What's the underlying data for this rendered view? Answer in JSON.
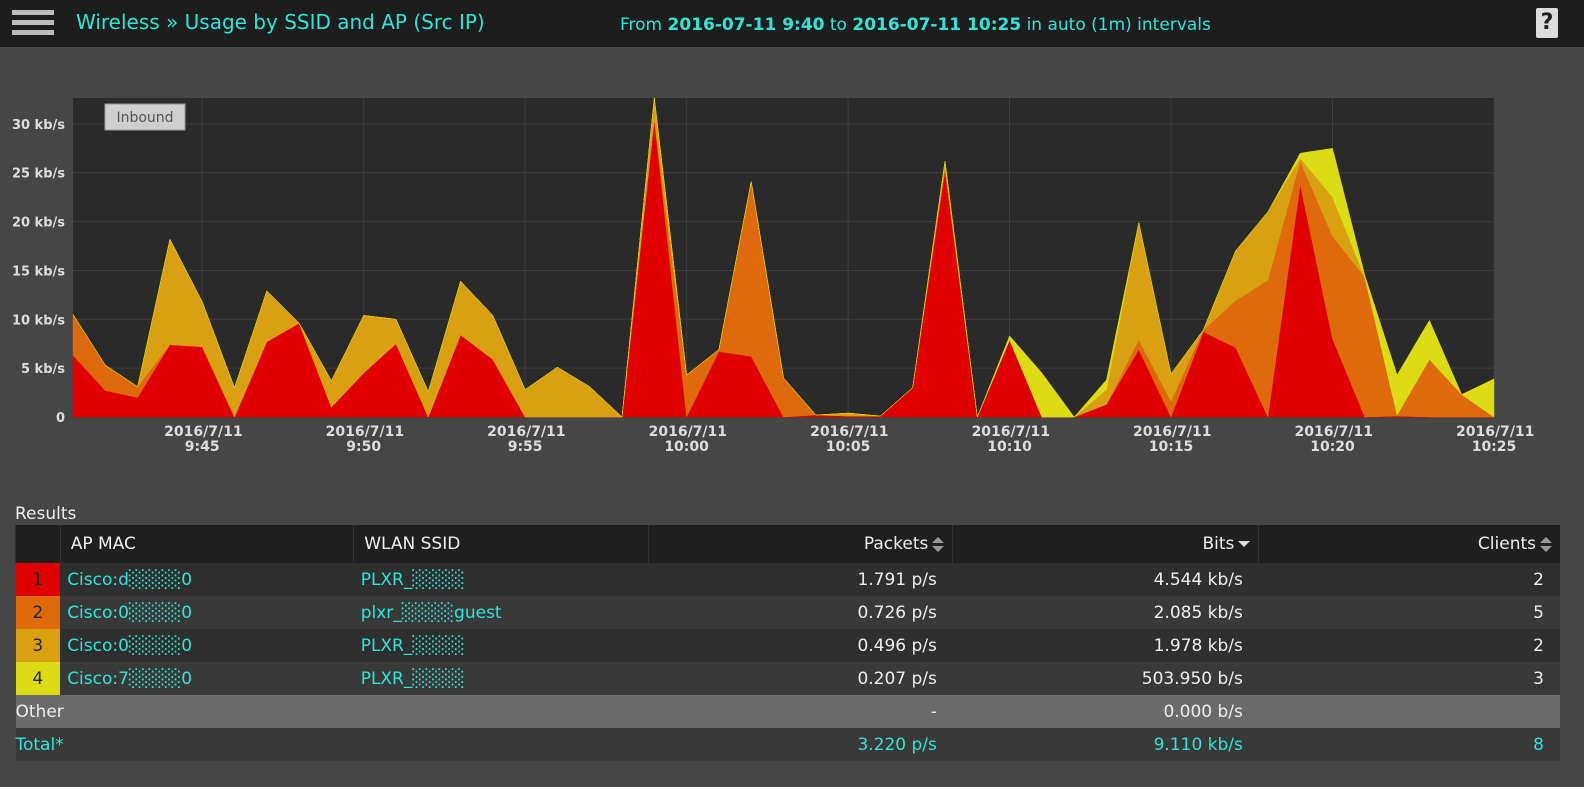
{
  "header": {
    "title": "Wireless » Usage by SSID and AP (Src IP)",
    "from_label": "From",
    "from": "2016-07-11 9:40",
    "to_label": "to",
    "to": "2016-07-11 10:25",
    "interval": "in auto (1m) intervals",
    "help": "?"
  },
  "chart_data": {
    "type": "area",
    "stacked": true,
    "toggle": "Inbound",
    "categories": [
      null,
      null,
      null,
      null,
      "2016/7/11 9:45",
      null,
      null,
      null,
      null,
      "2016/7/11 9:50",
      null,
      null,
      null,
      null,
      "2016/7/11 9:55",
      null,
      null,
      null,
      null,
      "2016/7/11 10:00",
      null,
      null,
      null,
      null,
      "2016/7/11 10:05",
      null,
      null,
      null,
      null,
      "2016/7/11 10:10",
      null,
      null,
      null,
      null,
      "2016/7/11 10:15",
      null,
      null,
      null,
      null,
      "2016/7/11 10:20",
      null,
      null,
      null,
      null,
      "2016/7/11 10:25"
    ],
    "series": [
      {
        "color": "#e00000",
        "values": [
          6.3,
          2.7,
          2.0,
          7.4,
          7.2,
          0,
          7.7,
          9.6,
          1.0,
          4.5,
          7.5,
          0,
          8.4,
          5.9,
          0,
          0,
          0,
          0,
          30.5,
          0,
          6.7,
          6.2,
          0,
          0.2,
          0.1,
          0.1,
          3.0,
          25.4,
          0,
          7.9,
          0,
          0,
          1.3,
          6.9,
          0,
          8.7,
          7.1,
          0,
          23.8,
          8.0,
          0,
          0.1,
          0,
          0,
          0
        ]
      },
      {
        "color": "#df6a0c",
        "values": [
          4.2,
          2.6,
          1.1,
          0,
          0,
          0,
          0,
          0,
          0,
          0,
          0,
          0,
          0,
          0,
          0,
          0,
          0,
          0,
          0,
          4.3,
          0.2,
          17.9,
          4.0,
          0,
          0,
          0,
          0,
          0,
          0,
          0,
          0,
          0,
          0,
          1.0,
          1.6,
          0.2,
          4.8,
          14.0,
          2.4,
          10.5,
          14.3,
          0.1,
          5.9,
          2.3,
          0
        ]
      },
      {
        "color": "#d9a012",
        "values": [
          0,
          0,
          0,
          10.8,
          4.6,
          3.0,
          5.2,
          0,
          2.7,
          5.9,
          2.5,
          2.6,
          5.5,
          4.5,
          2.8,
          5.1,
          3.1,
          0,
          2.2,
          0,
          0,
          0,
          0,
          0,
          0.3,
          0,
          0,
          0.8,
          0,
          0,
          0,
          0,
          1.5,
          12.0,
          2.8,
          0,
          5.1,
          7.0,
          0.3,
          4.0,
          0,
          0,
          0,
          0,
          0
        ]
      },
      {
        "color": "#dcdc14",
        "values": [
          0,
          0,
          0,
          0,
          0,
          0,
          0,
          0,
          0,
          0,
          0,
          0,
          0,
          0,
          0,
          0,
          0,
          0,
          0,
          0,
          0,
          0,
          0,
          0,
          0,
          0,
          0,
          0,
          0,
          0.4,
          4.5,
          0,
          1.0,
          0,
          0,
          0,
          0,
          0,
          0.5,
          5.0,
          0.2,
          4.1,
          4.0,
          0,
          3.9
        ]
      }
    ],
    "ylim": [
      0,
      32.65
    ],
    "yticks": [
      0,
      {
        "value": 5,
        "label": "5 kb/s"
      },
      {
        "value": 10,
        "label": "10 kb/s"
      },
      {
        "value": 15,
        "label": "15 kb/s"
      },
      {
        "value": 20,
        "label": "20 kb/s"
      },
      {
        "value": 25,
        "label": "25 kb/s"
      },
      {
        "value": 30,
        "label": "30 kb/s"
      }
    ],
    "grid": true
  },
  "results_label": "Results",
  "table": {
    "columns": [
      "AP MAC",
      "WLAN SSID",
      "Packets",
      "Bits",
      "Clients"
    ],
    "rows": [
      [
        1,
        "Cisco:d░░░░0",
        "PLXR_░░░░",
        "1.791 p/s",
        "4.544 kb/s",
        2
      ],
      [
        2,
        "Cisco:0░░░░0",
        "plxr_░░░░guest",
        "0.726 p/s",
        "2.085 kb/s",
        5
      ],
      [
        3,
        "Cisco:0░░░░0",
        "PLXR_░░░░",
        "0.496 p/s",
        "1.978 kb/s",
        2
      ],
      [
        4,
        "Cisco:7░░░░0",
        "PLXR_░░░░",
        "0.207 p/s",
        "503.950 b/s",
        3
      ]
    ],
    "other": [
      "Other",
      "-",
      "0.000 b/s"
    ],
    "total": [
      "Total*",
      "3.220 p/s",
      "9.110 kb/s",
      8
    ]
  }
}
